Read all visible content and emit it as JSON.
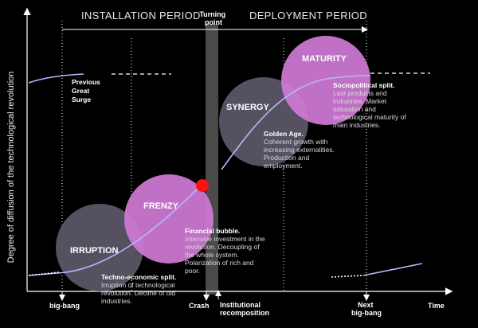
{
  "y_axis_label": "Degree of diffusion of the technological revolution",
  "x_axis_label": "Time",
  "periods": {
    "installation": "INSTALLATION PERIOD",
    "deployment": "DEPLOYMENT PERIOD",
    "turning_point": [
      "Turning",
      "point"
    ]
  },
  "phases": [
    {
      "id": "irruption",
      "label": "IRRUPTION",
      "color": "#5a5566"
    },
    {
      "id": "frenzy",
      "label": "FRENZY",
      "color": "#d07ad6"
    },
    {
      "id": "synergy",
      "label": "SYNERGY",
      "color": "#5a5566"
    },
    {
      "id": "maturity",
      "label": "MATURITY",
      "color": "#d07ad6"
    }
  ],
  "previous_surge": [
    "Previous",
    "Great",
    "Surge"
  ],
  "descriptions": {
    "irruption": {
      "head": "Techno-economic split.",
      "body": [
        "Irruption of technological",
        "revolution. Decline of old",
        "industries."
      ]
    },
    "frenzy": {
      "head": "Financial bubble.",
      "body": [
        "Intensive investment in the",
        "revolution. Decoupling of",
        "the whole system.",
        "Polarization of rich and",
        "poor."
      ]
    },
    "synergy": {
      "head": "Golden Age.",
      "body": [
        "Coherent growth with",
        "increasing externalities.",
        "Production and",
        "employment."
      ]
    },
    "maturity": {
      "head": "Sociopolitical split.",
      "body": [
        "Last products and",
        "industries. Market",
        "saturation and",
        "technological maturity of",
        "main industries."
      ]
    }
  },
  "x_markers": {
    "big_bang": "big-bang",
    "crash": "Crash",
    "institutional": [
      "Institutional",
      "recomposition"
    ],
    "next_big_bang": [
      "Next",
      "big-bang"
    ]
  },
  "colors": {
    "background": "#000000",
    "grey_circle": "#5a5566",
    "pink_circle": "#d07ad6",
    "curve": "#b9b9ff",
    "crash_dot": "#ff1010",
    "turning_band": "#4a4a4a"
  }
}
